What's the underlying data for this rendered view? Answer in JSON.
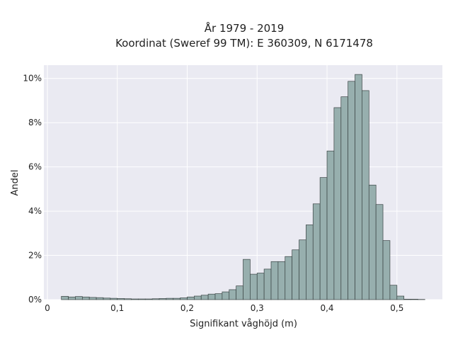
{
  "chart_data": {
    "type": "bar",
    "title_line1": "År 1979 - 2019",
    "title_line2": "Koordinat (Sweref 99 TM): E 360309, N 6171478",
    "xlabel": "Signifikant våghöjd (m)",
    "ylabel": "Andel",
    "xlim": [
      -0.005,
      0.565
    ],
    "ylim": [
      0,
      10.6
    ],
    "x_ticks": [
      {
        "value": 0,
        "label": "0"
      },
      {
        "value": 0.1,
        "label": "0,1"
      },
      {
        "value": 0.2,
        "label": "0,2"
      },
      {
        "value": 0.3,
        "label": "0,3"
      },
      {
        "value": 0.4,
        "label": "0,4"
      },
      {
        "value": 0.5,
        "label": "0,5"
      }
    ],
    "y_ticks": [
      {
        "value": 0,
        "label": "0%"
      },
      {
        "value": 2,
        "label": "2%"
      },
      {
        "value": 4,
        "label": "4%"
      },
      {
        "value": 6,
        "label": "6%"
      },
      {
        "value": 8,
        "label": "8%"
      },
      {
        "value": 10,
        "label": "10%"
      }
    ],
    "bin_width": 0.01,
    "bins_start": [
      0.02,
      0.03,
      0.04,
      0.05,
      0.06,
      0.07,
      0.08,
      0.09,
      0.1,
      0.11,
      0.12,
      0.13,
      0.14,
      0.15,
      0.16,
      0.17,
      0.18,
      0.19,
      0.2,
      0.21,
      0.22,
      0.23,
      0.24,
      0.25,
      0.26,
      0.27,
      0.28,
      0.29,
      0.3,
      0.31,
      0.32,
      0.33,
      0.34,
      0.35,
      0.36,
      0.37,
      0.38,
      0.39,
      0.4,
      0.41,
      0.42,
      0.43,
      0.44,
      0.45,
      0.46,
      0.47,
      0.48,
      0.49,
      0.5,
      0.51,
      0.52,
      0.53
    ],
    "values": [
      0.15,
      0.12,
      0.14,
      0.12,
      0.1,
      0.09,
      0.07,
      0.06,
      0.05,
      0.04,
      0.03,
      0.03,
      0.03,
      0.04,
      0.05,
      0.06,
      0.06,
      0.08,
      0.12,
      0.16,
      0.2,
      0.25,
      0.27,
      0.35,
      0.45,
      0.62,
      1.82,
      1.15,
      1.2,
      1.38,
      1.72,
      1.72,
      1.95,
      2.25,
      2.7,
      3.38,
      4.33,
      5.52,
      6.72,
      8.68,
      9.17,
      9.87,
      10.18,
      9.45,
      5.18,
      4.3,
      2.67,
      0.65,
      0.16,
      0.02,
      0.02,
      0.01
    ],
    "colors": {
      "bar_fill": "#97afae",
      "bar_stroke": "#3a4444",
      "plot_bg": "#eaeaf2",
      "grid": "#ffffff"
    },
    "grid": true
  }
}
